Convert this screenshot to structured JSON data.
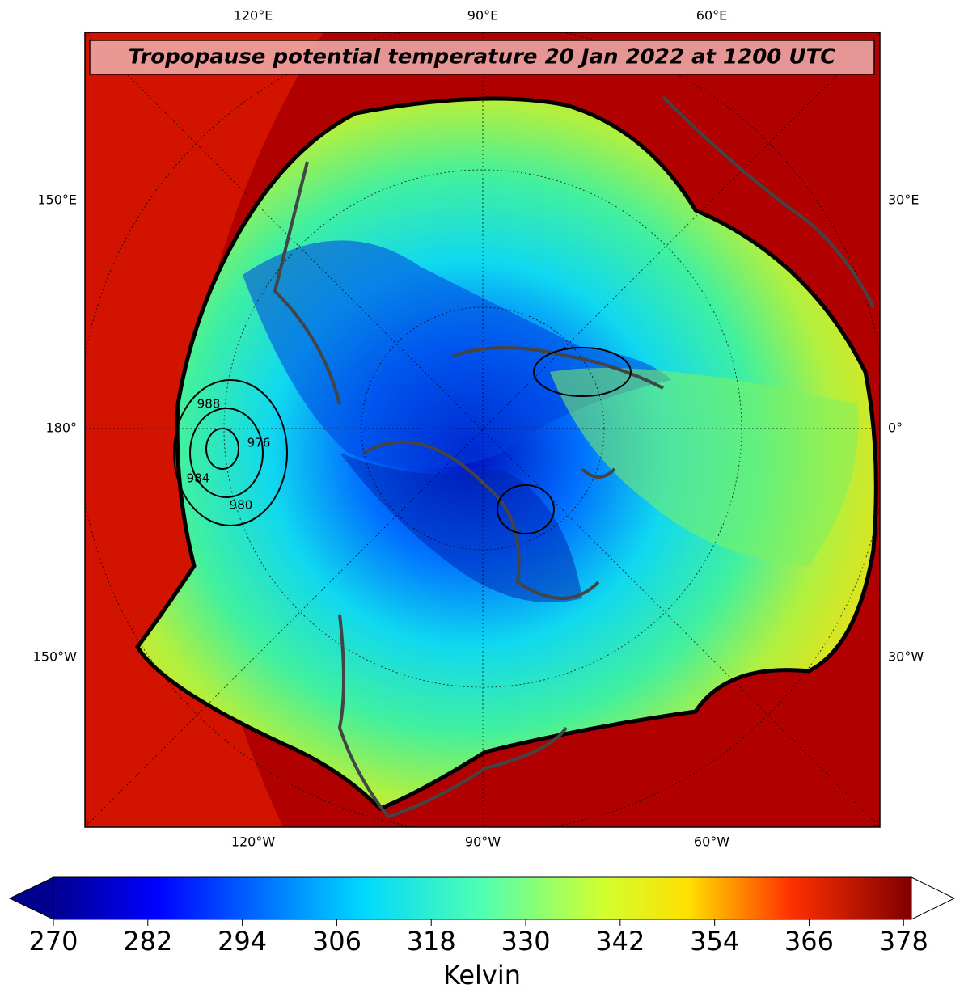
{
  "title": "Tropopause potential temperature 20 Jan 2022 at 1200 UTC",
  "map": {
    "top_labels": [
      "120°E",
      "90°E",
      "60°E"
    ],
    "bottom_labels": [
      "120°W",
      "90°W",
      "60°W"
    ],
    "left_labels": [
      "150°E",
      "180°",
      "150°W"
    ],
    "right_labels": [
      "30°E",
      "0°",
      "30°W"
    ],
    "contour_labels": [
      "988",
      "976",
      "984",
      "980"
    ]
  },
  "colorbar": {
    "label": "Kelvin",
    "lim": [
      270,
      379
    ],
    "ticks": [
      270,
      282,
      294,
      306,
      318,
      330,
      342,
      354,
      366,
      378
    ],
    "extend": "both"
  }
}
